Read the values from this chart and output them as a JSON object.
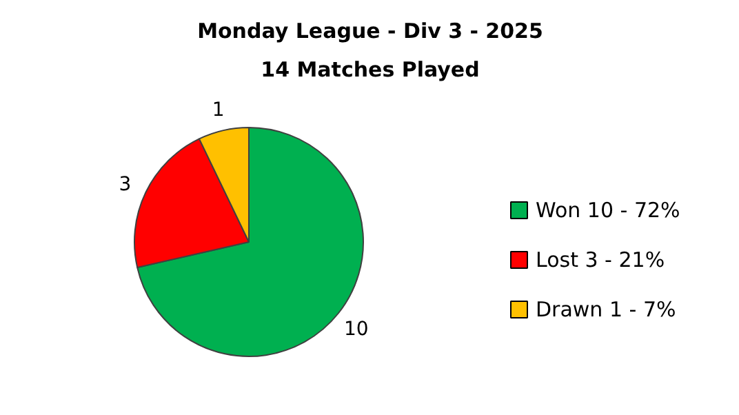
{
  "chart_data": {
    "type": "pie",
    "title": "Monday League - Div 3 - 2025",
    "subtitle": "14 Matches Played",
    "categories": [
      "Won 10 - 72%",
      "Lost 3 - 21%",
      "Drawn 1 - 7%"
    ],
    "values": [
      10,
      3,
      1
    ],
    "colors": [
      "#00b050",
      "#ff0000",
      "#ffc000"
    ],
    "data_labels": true,
    "legend": "right"
  }
}
